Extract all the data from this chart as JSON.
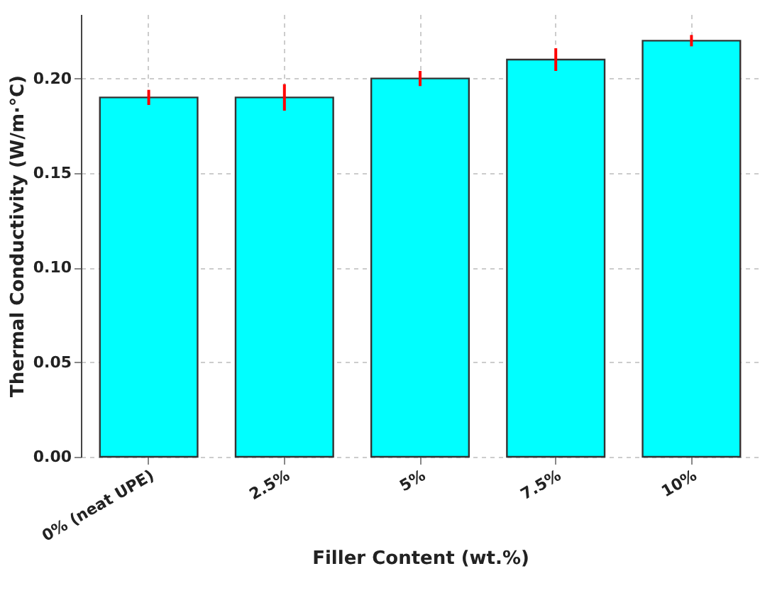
{
  "chart_data": {
    "type": "bar",
    "xlabel": "Filler Content (wt.%)",
    "ylabel": "Thermal Conductivity (W/m·°C)",
    "categories": [
      "0% (neat UPE)",
      "2.5%",
      "5%",
      "7.5%",
      "10%"
    ],
    "series": [
      {
        "color": "#00ffff",
        "values": [
          0.19,
          0.19,
          0.2,
          0.21,
          0.22
        ],
        "errors": [
          0.004,
          0.007,
          0.004,
          0.006,
          0.003
        ]
      }
    ],
    "ylim": [
      0,
      0.234
    ],
    "yticks": [
      {
        "value": 0,
        "label": "0.00"
      },
      {
        "value": 0.05,
        "label": "0.05"
      },
      {
        "value": 0.1,
        "label": "0.10"
      },
      {
        "value": 0.15,
        "label": "0.15"
      },
      {
        "value": 0.2,
        "label": "0.20"
      }
    ],
    "grid": true
  }
}
